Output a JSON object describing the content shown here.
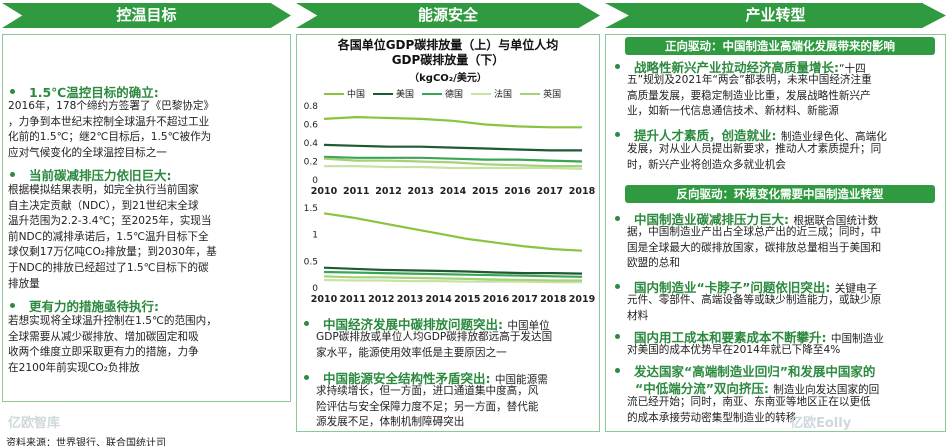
{
  "panel1": {
    "header": "控温目标",
    "s1": {
      "title": "1.5℃温控目标的确立:",
      "body": [
        "2016年，178个缔约方签署了《巴黎协定》",
        "，力争到本世纪末控制全球温升不超过工业",
        "化前的1.5℃；继2℃目标后，1.5℃被作为",
        "应对气候变化的全球温控目标之一"
      ]
    },
    "s2": {
      "title": "当前碳减排压力依旧巨大:",
      "body": [
        "根据模拟结果表明，如完全执行当前国家",
        "自主决定贡献（NDC），到21世纪末全球",
        "温升范围为2.2-3.4℃；至2025年，实现当",
        "前NDC的减排承诺后，1.5℃温升目标下全",
        "球仅剩17万亿吨CO₂排放量；到2030年，基",
        "于NDC的排放已经超过了1.5℃目标下的碳",
        "排放量"
      ]
    },
    "s3": {
      "title": "更有力的措施亟待执行:",
      "body": [
        "若想实现将全球温升控制在1.5℃的范围内，",
        "全球需要从减少碳排放、增加碳固定和吸",
        "收两个维度立即采取更有力的措施，力争",
        "在2100年前实现CO₂负排放"
      ]
    }
  },
  "panel2": {
    "header": "能源安全",
    "chart_title_1": "各国单位GDP碳排放量（上）与单位人均",
    "chart_title_2": "GDP碳排放量（下）",
    "unit": "（kgCO₂/美元）",
    "s1": {
      "title": "中国经济发展中碳排放问题突出:",
      "body_first": "中国单位",
      "body": [
        "GDP碳排放或单位人均GDP碳排放都远高于发达国",
        "家水平，能源使用效率低是主要原因之一"
      ]
    },
    "s2": {
      "title": "中国能源安全结构性矛盾突出:",
      "body_first": "中国能源需",
      "body": [
        "求持续增长，但一方面，进口通道集中度高，风",
        "险评估与安全保障力度不足；另一方面，替代能",
        "源发展不足，体制机制障碍突出"
      ]
    }
  },
  "chart_data": [
    {
      "type": "line",
      "title": "各国单位GDP碳排放量（上）",
      "unit": "kgCO₂/美元",
      "x": [
        "2010",
        "2011",
        "2012",
        "2013",
        "2014",
        "2015",
        "2016",
        "2017",
        "2018"
      ],
      "ylim": [
        0,
        0.8
      ],
      "yticks": [
        "0.8",
        "0.6",
        "0.4",
        "0.2",
        "0"
      ],
      "series": [
        {
          "name": "中国",
          "color": "#8ac33f",
          "values": [
            0.66,
            0.68,
            0.67,
            0.66,
            0.64,
            0.6,
            0.58,
            0.57,
            0.57
          ]
        },
        {
          "name": "美国",
          "color": "#1e5a32",
          "values": [
            0.38,
            0.37,
            0.36,
            0.36,
            0.35,
            0.34,
            0.33,
            0.32,
            0.32
          ]
        },
        {
          "name": "德国",
          "color": "#3aa655",
          "values": [
            0.25,
            0.24,
            0.24,
            0.24,
            0.23,
            0.22,
            0.22,
            0.21,
            0.2
          ]
        },
        {
          "name": "法国",
          "color": "#c7e3a4",
          "values": [
            0.15,
            0.15,
            0.14,
            0.14,
            0.13,
            0.13,
            0.13,
            0.13,
            0.12
          ]
        },
        {
          "name": "英国",
          "color": "#a6d17a",
          "values": [
            0.23,
            0.21,
            0.21,
            0.2,
            0.19,
            0.17,
            0.16,
            0.15,
            0.15
          ]
        }
      ]
    },
    {
      "type": "line",
      "title": "各国单位人均GDP碳排放量（下）",
      "unit": "kgCO₂/美元",
      "x": [
        "2010",
        "2011",
        "2012",
        "2013",
        "2014",
        "2015",
        "2016",
        "2017",
        "2018",
        "2019"
      ],
      "ylim": [
        0,
        1.5
      ],
      "yticks": [
        "1.5",
        "1",
        "0.5",
        "0"
      ],
      "series": [
        {
          "name": "中国",
          "color": "#8ac33f",
          "values": [
            1.4,
            1.32,
            1.22,
            1.12,
            1.02,
            0.92,
            0.85,
            0.78,
            0.73,
            0.7
          ]
        },
        {
          "name": "美国",
          "color": "#1e5a32",
          "values": [
            0.38,
            0.36,
            0.34,
            0.33,
            0.32,
            0.31,
            0.29,
            0.28,
            0.28,
            0.27
          ]
        },
        {
          "name": "德国",
          "color": "#3aa655",
          "values": [
            0.3,
            0.29,
            0.28,
            0.27,
            0.26,
            0.25,
            0.24,
            0.23,
            0.22,
            0.21
          ]
        },
        {
          "name": "法国",
          "color": "#c7e3a4",
          "values": [
            0.15,
            0.14,
            0.14,
            0.13,
            0.13,
            0.12,
            0.12,
            0.12,
            0.11,
            0.11
          ]
        },
        {
          "name": "英国",
          "color": "#a6d17a",
          "values": [
            0.22,
            0.2,
            0.2,
            0.19,
            0.18,
            0.17,
            0.16,
            0.15,
            0.14,
            0.14
          ]
        }
      ]
    }
  ],
  "panel3": {
    "header": "产业转型",
    "pos_header": "正向驱动：中国制造业高端化发展带来的影响",
    "pos": [
      {
        "title": "战略性新兴产业拉动经济高质量增长:",
        "title_tail": "“十四",
        "body": [
          "五”规划及2021年“两会”都表明，未来中国经济注重",
          "高质量发展，要稳定制造业比重，发展战略性新兴产",
          "业，如新一代信息通信技术、新材料、新能源"
        ]
      },
      {
        "title": "提升人才素质，创造就业:",
        "title_tail": "制造业绿色化、高端化",
        "body": [
          "发展，对从业人员提出新要求，推动人才素质提升；同",
          "时，新兴产业将创造众多就业机会"
        ]
      }
    ],
    "neg_header": "反向驱动：环境变化需要中国制造业转型",
    "neg": [
      {
        "title": "中国制造业碳减排压力巨大:",
        "title_tail": "根据联合国统计数",
        "body": [
          "据，中国制造业产出占全球总产出的近三成；同时，中",
          "国是全球最大的碳排放国家，碳排放总量相当于美国和",
          "欧盟的总和"
        ]
      },
      {
        "title": "国内制造业“卡脖子”问题依旧突出:",
        "title_tail": "关键电子",
        "body": [
          "元件、零部件、高端设备等或缺少制造能力，或缺少原",
          "材料"
        ]
      },
      {
        "title": "国内用工成本和要素成本不断攀升:",
        "title_tail": "中国制造业",
        "body": [
          "对美国的成本优势早在2014年就已下降至4%"
        ]
      },
      {
        "title": "发达国家“高端制造业回归”和发展中国家的",
        "title_line2": "“中低端分流”双向挤压:",
        "title_tail": "制造业向发达国家的回",
        "body": [
          "流已经开始；同时，南亚、东南亚等地区正在以更低",
          "的成本承接劳动密集型制造业的转移"
        ]
      }
    ]
  },
  "source": "资料来源：世界银行、联合国统计司",
  "watermark_left": "亿欧智库",
  "watermark_right": "亿欧Eolly",
  "colors": {
    "header_green": "#2f9a3f",
    "text_green": "#2b8a3e",
    "border": "#8cc79a"
  }
}
